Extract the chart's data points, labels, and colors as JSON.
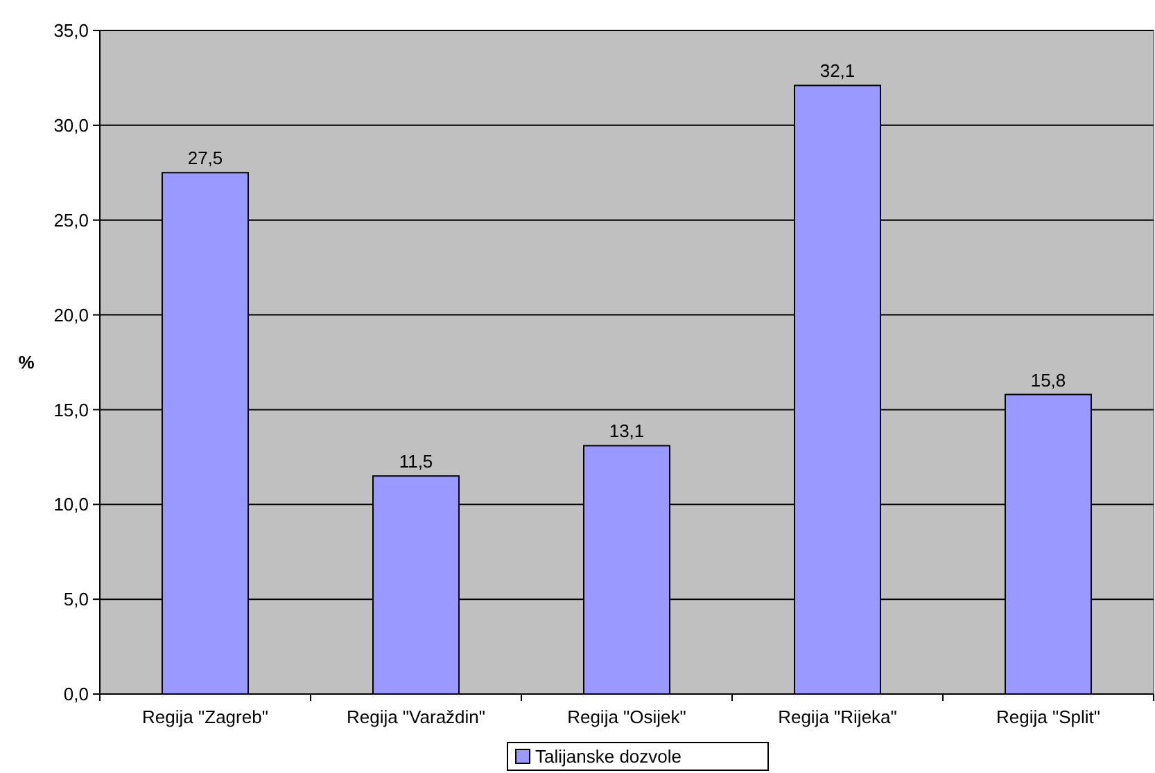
{
  "chart_data": {
    "type": "bar",
    "ylabel": "%",
    "categories": [
      "Regija \"Zagreb\"",
      "Regija \"Varaždin\"",
      "Regija \"Osijek\"",
      "Regija \"Rijeka\"",
      "Regija \"Split\""
    ],
    "series": [
      {
        "name": "Talijanske dozvole",
        "color": "#9999ff",
        "values": [
          27.5,
          11.5,
          13.1,
          32.1,
          15.8
        ],
        "value_labels": [
          "27,5",
          "11,5",
          "13,1",
          "32,1",
          "15,8"
        ]
      }
    ],
    "ylim": [
      0,
      35
    ],
    "yticks": [
      {
        "value": 0,
        "label": "0,0"
      },
      {
        "value": 5,
        "label": "5,0"
      },
      {
        "value": 10,
        "label": "10,0"
      },
      {
        "value": 15,
        "label": "15,0"
      },
      {
        "value": 20,
        "label": "20,0"
      },
      {
        "value": 25,
        "label": "25,0"
      },
      {
        "value": 30,
        "label": "30,0"
      },
      {
        "value": 35,
        "label": "35,0"
      }
    ],
    "grid": "y",
    "legend": "bottom"
  }
}
